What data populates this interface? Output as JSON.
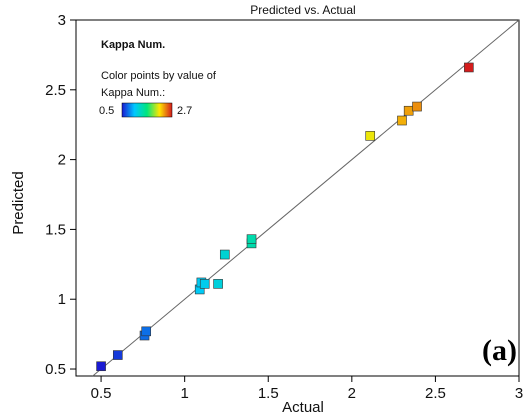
{
  "chart_data": {
    "type": "scatter",
    "title": "Predicted vs. Actual",
    "xlabel": "Actual",
    "ylabel": "Predicted",
    "xlim": [
      0.35,
      3.0
    ],
    "ylim": [
      0.45,
      3.0
    ],
    "x_ticks": [
      "0.5",
      "1",
      "1.5",
      "2",
      "2.5",
      "3"
    ],
    "y_ticks": [
      "0.5",
      "1",
      "1.5",
      "2",
      "2.5",
      "3"
    ],
    "grid": false,
    "reference_line": {
      "x": [
        0.35,
        3.0
      ],
      "y": [
        0.35,
        3.0
      ]
    },
    "legend": {
      "placement": "top-left",
      "title": "Kappa Num.",
      "caption_line1": "Color points by value of",
      "caption_line2": "Kappa Num.:",
      "min_label": "0.5",
      "max_label": "2.7",
      "min": 0.5,
      "max": 2.7,
      "colors": [
        "#1a1ad2",
        "#00c8ff",
        "#00e67d",
        "#ffe600",
        "#d41c1c"
      ]
    },
    "points": [
      {
        "x": 0.5,
        "y": 0.52
      },
      {
        "x": 0.6,
        "y": 0.6
      },
      {
        "x": 0.76,
        "y": 0.74
      },
      {
        "x": 0.77,
        "y": 0.77
      },
      {
        "x": 1.09,
        "y": 1.07
      },
      {
        "x": 1.1,
        "y": 1.12
      },
      {
        "x": 1.12,
        "y": 1.11
      },
      {
        "x": 1.2,
        "y": 1.11
      },
      {
        "x": 1.24,
        "y": 1.32
      },
      {
        "x": 1.4,
        "y": 1.4
      },
      {
        "x": 1.4,
        "y": 1.43
      },
      {
        "x": 2.11,
        "y": 2.17
      },
      {
        "x": 2.3,
        "y": 2.28
      },
      {
        "x": 2.34,
        "y": 2.35
      },
      {
        "x": 2.39,
        "y": 2.38
      },
      {
        "x": 2.7,
        "y": 2.66
      }
    ],
    "panel_label": "(a)"
  }
}
